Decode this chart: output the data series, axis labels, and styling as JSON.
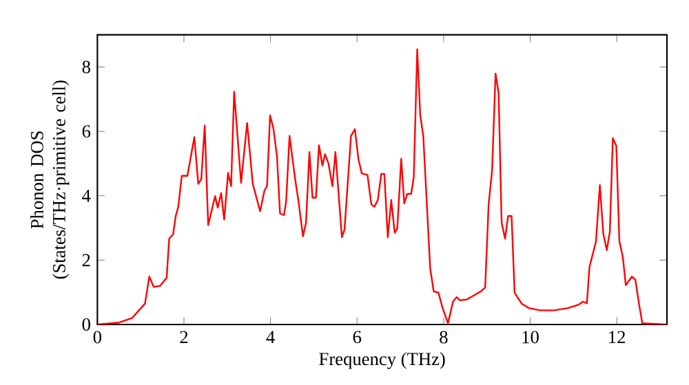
{
  "chart_data": {
    "type": "line",
    "xlabel": "Frequency (THz)",
    "ylabel": "Phonon DOS (States/THz·primitive cell)",
    "color": "#ff0000",
    "marker": "none",
    "line_style": "solid",
    "grid": false,
    "xlim": [
      0,
      13.16
    ],
    "ylim": [
      0,
      9
    ],
    "xticks": [
      0,
      2,
      4,
      6,
      8,
      10,
      12
    ],
    "yticks": [
      0,
      2,
      4,
      6,
      8
    ],
    "x": [
      0,
      0.5,
      0.8,
      1.1,
      1.2,
      1.3,
      1.45,
      1.6,
      1.66,
      1.75,
      1.81,
      1.87,
      1.95,
      2.08,
      2.24,
      2.33,
      2.4,
      2.48,
      2.56,
      2.72,
      2.78,
      2.86,
      2.93,
      3.02,
      3.09,
      3.16,
      3.32,
      3.46,
      3.59,
      3.76,
      3.86,
      3.92,
      3.99,
      4.07,
      4.15,
      4.22,
      4.31,
      4.36,
      4.44,
      4.57,
      4.65,
      4.75,
      4.82,
      4.9,
      4.97,
      5.05,
      5.12,
      5.2,
      5.26,
      5.34,
      5.43,
      5.5,
      5.65,
      5.71,
      5.86,
      5.95,
      6.03,
      6.11,
      6.24,
      6.33,
      6.4,
      6.48,
      6.56,
      6.63,
      6.71,
      6.79,
      6.87,
      6.93,
      7.02,
      7.09,
      7.16,
      7.25,
      7.31,
      7.39,
      7.46,
      7.53,
      7.69,
      7.77,
      7.88,
      7.97,
      8.1,
      8.22,
      8.3,
      8.38,
      8.54,
      8.86,
      8.96,
      9.04,
      9.12,
      9.2,
      9.27,
      9.34,
      9.42,
      9.49,
      9.57,
      9.64,
      9.7,
      9.81,
      9.97,
      10.23,
      10.55,
      10.87,
      11.11,
      11.22,
      11.31,
      11.37,
      11.52,
      11.61,
      11.69,
      11.77,
      11.84,
      11.91,
      11.99,
      12.06,
      12.14,
      12.21,
      12.35,
      12.43,
      12.51,
      12.59,
      13.16
    ],
    "values": [
      0,
      0.06,
      0.2,
      0.65,
      1.49,
      1.17,
      1.2,
      1.45,
      2.67,
      2.8,
      3.37,
      3.66,
      4.62,
      4.62,
      5.82,
      4.37,
      4.51,
      6.18,
      3.09,
      3.99,
      3.63,
      4.08,
      3.26,
      4.71,
      4.3,
      7.23,
      4.4,
      6.26,
      4.37,
      3.52,
      4.16,
      4.3,
      6.5,
      6.07,
      5.22,
      3.45,
      3.4,
      3.8,
      5.86,
      4.51,
      3.8,
      2.74,
      3.16,
      5.36,
      3.94,
      3.94,
      5.57,
      4.94,
      5.29,
      5.0,
      4.3,
      5.36,
      2.71,
      2.95,
      5.86,
      6.07,
      5.15,
      4.69,
      4.65,
      3.73,
      3.66,
      3.87,
      4.68,
      4.68,
      2.71,
      3.87,
      2.85,
      2.99,
      5.15,
      3.76,
      4.06,
      4.06,
      4.58,
      8.55,
      6.5,
      5.86,
      1.74,
      1.03,
      0.99,
      0.54,
      0.04,
      0.72,
      0.85,
      0.75,
      0.78,
      1.03,
      1.15,
      3.73,
      4.79,
      7.8,
      7.2,
      3.16,
      2.67,
      3.37,
      3.37,
      0.99,
      0.86,
      0.64,
      0.51,
      0.44,
      0.44,
      0.51,
      0.61,
      0.71,
      0.66,
      1.79,
      2.58,
      4.33,
      2.81,
      2.31,
      2.88,
      5.79,
      5.55,
      2.6,
      2.1,
      1.22,
      1.49,
      1.39,
      0.68,
      0.04,
      0
    ]
  }
}
